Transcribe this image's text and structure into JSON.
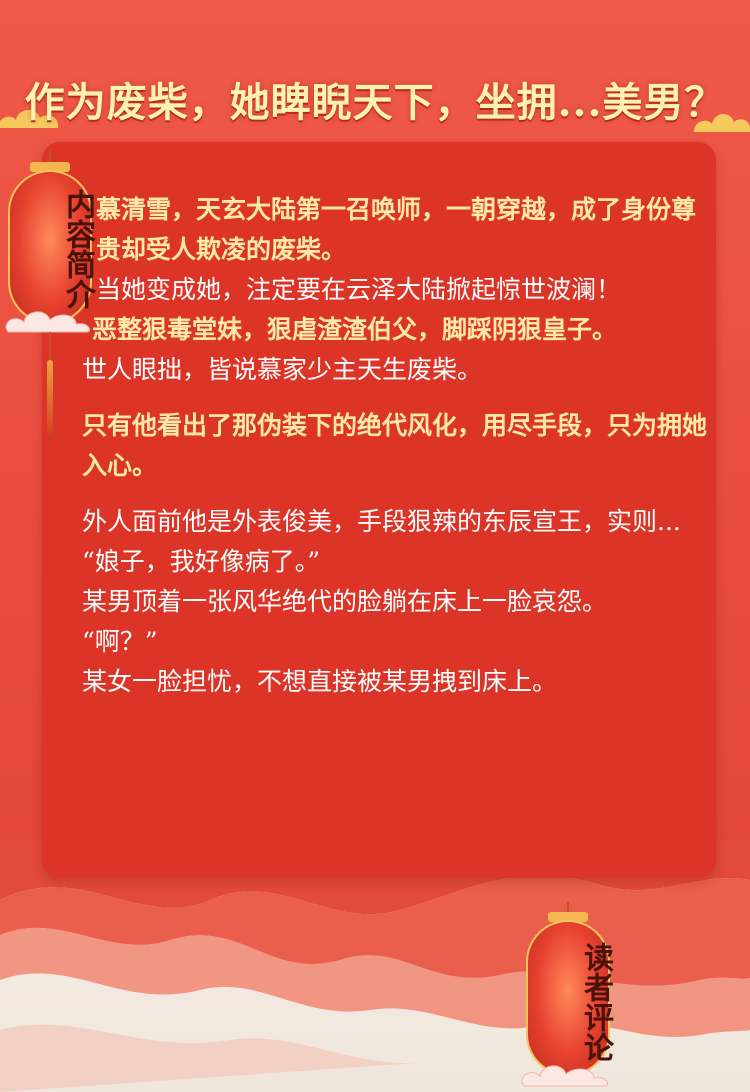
{
  "page": {
    "title": "作为废柴，她睥睨天下，坐拥...美男？"
  },
  "lanterns": {
    "intro": "内容简介",
    "reviews": "读者评论"
  },
  "synopsis": [
    {
      "text": "慕清雪，天玄大陆第一召唤师，一朝穿越，成了身份尊贵却受人欺凌的废柴。",
      "style": "gold"
    },
    {
      "text": "当她变成她，注定要在云泽大陆掀起惊世波澜！",
      "style": "white"
    },
    {
      "text": "恶整狠毒堂妹，狠虐渣渣伯父，脚踩阴狠皇子。",
      "style": "gold"
    },
    {
      "text": "世人眼拙，皆说慕家少主天生废柴。",
      "style": "white"
    },
    {
      "text": "只有他看出了那伪装下的绝代风化，用尽手段，只为拥她入心。",
      "style": "gold"
    },
    {
      "text": "外人面前他是外表俊美，手段狠辣的东辰宣王，实则...",
      "style": "white"
    },
    {
      "text": "“娘子，我好像病了。”",
      "style": "white"
    },
    {
      "text": "某男顶着一张风华绝代的脸躺在床上一脸哀怨。",
      "style": "white"
    },
    {
      "text": "“啊？”",
      "style": "white"
    },
    {
      "text": "某女一脸担忧，不想直接被某男拽到床上。",
      "style": "white"
    }
  ],
  "colors": {
    "background": "#e9503f",
    "card": "#dc3427",
    "gold_text": "#ffe9a8",
    "title_text": "#fff1b0"
  }
}
